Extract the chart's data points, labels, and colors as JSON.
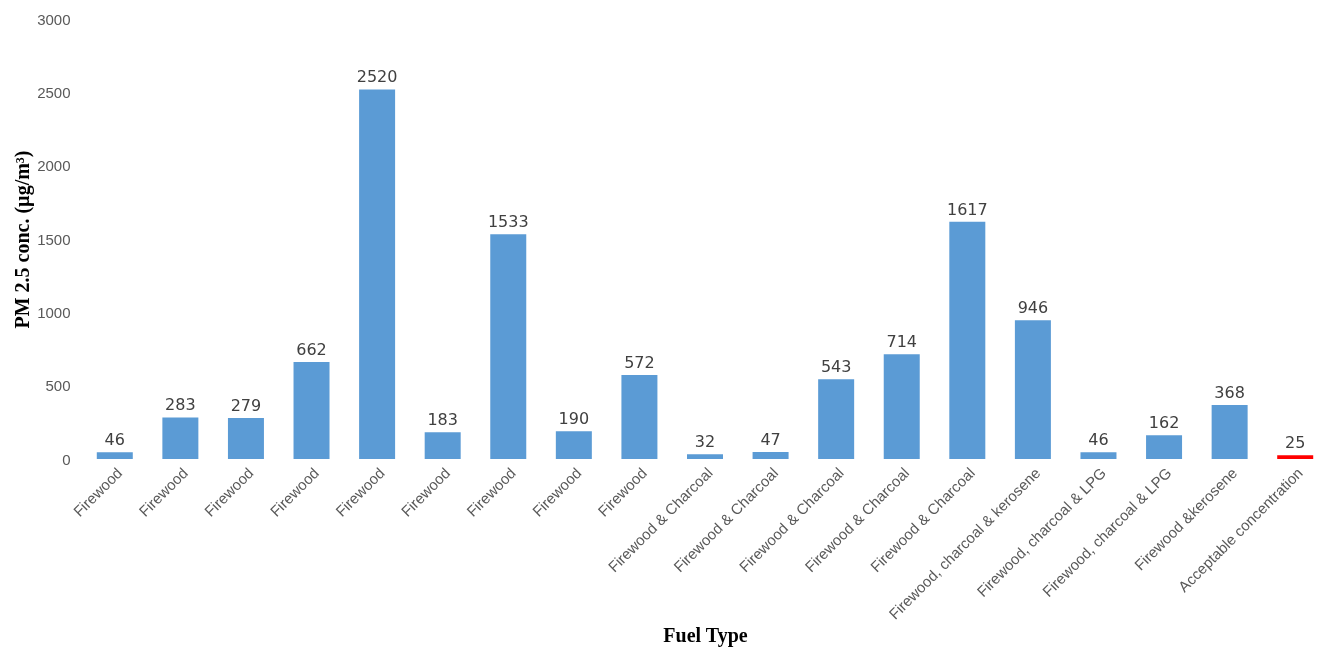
{
  "chart_data": {
    "type": "bar",
    "xlabel": "Fuel Type",
    "ylabel": "PM 2.5 conc. (µg/m³)",
    "categories": [
      "Firewood",
      "Firewood",
      "Firewood",
      "Firewood",
      "Firewood",
      "Firewood",
      "Firewood",
      "Firewood",
      "Firewood",
      "Firewood & Charcoal",
      "Firewood & Charcoal",
      "Firewood & Charcoal",
      "Firewood & Charcoal",
      "Firewood & Charcoal",
      "Firewood, charcoal & kerosene",
      "Firewood, charcoal & LPG",
      "Firewood, charcoal & LPG",
      "Firewood &kerosene",
      "Acceptable concentration"
    ],
    "values": [
      46,
      283,
      279,
      662,
      2520,
      183,
      1533,
      190,
      572,
      32,
      47,
      543,
      714,
      1617,
      946,
      46,
      162,
      368,
      25
    ],
    "colors": [
      "#5b9bd5",
      "#5b9bd5",
      "#5b9bd5",
      "#5b9bd5",
      "#5b9bd5",
      "#5b9bd5",
      "#5b9bd5",
      "#5b9bd5",
      "#5b9bd5",
      "#5b9bd5",
      "#5b9bd5",
      "#5b9bd5",
      "#5b9bd5",
      "#5b9bd5",
      "#5b9bd5",
      "#5b9bd5",
      "#5b9bd5",
      "#5b9bd5",
      "#ff0000"
    ],
    "ylim": [
      0,
      3000
    ],
    "yticks": [
      0,
      500,
      1000,
      1500,
      2000,
      2500,
      3000
    ],
    "data_labels": true,
    "grid": false
  }
}
